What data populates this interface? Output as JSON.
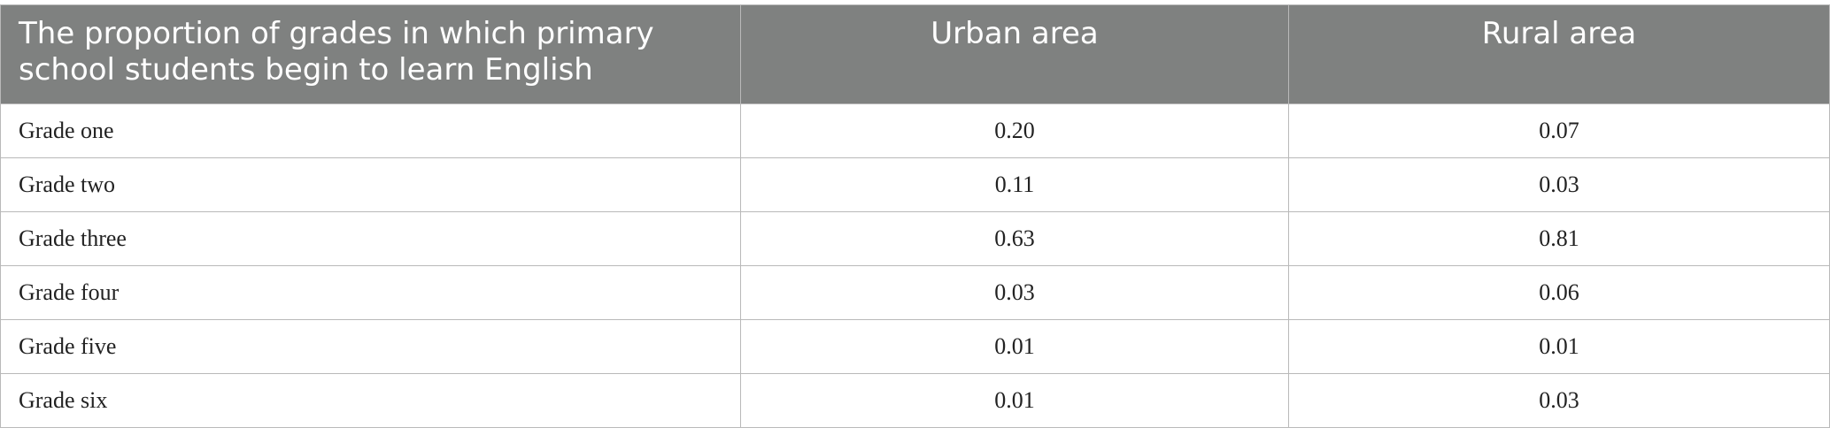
{
  "table": {
    "header": [
      "The proportion of grades in which primary school students begin to learn English",
      "Urban area",
      "Rural area"
    ],
    "rows": [
      [
        "Grade one",
        "0.20",
        "0.07"
      ],
      [
        "Grade two",
        "0.11",
        "0.03"
      ],
      [
        "Grade three",
        "0.63",
        "0.81"
      ],
      [
        "Grade four",
        "0.03",
        "0.06"
      ],
      [
        "Grade five",
        "0.01",
        "0.01"
      ],
      [
        "Grade six",
        "0.01",
        "0.03"
      ]
    ]
  }
}
